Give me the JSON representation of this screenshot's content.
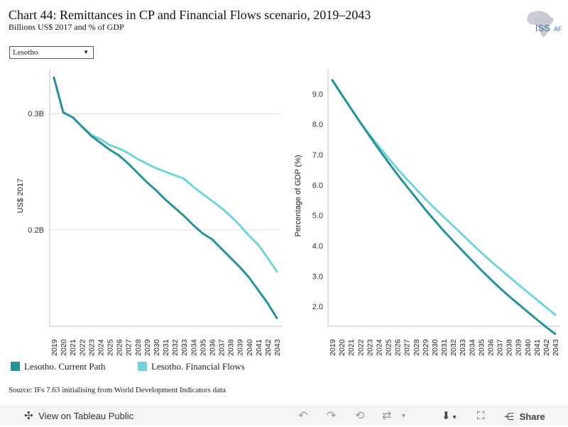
{
  "header": {
    "title": "Chart 44: Remittances in CP and Financial Flows scenario, 2019–2043",
    "subtitle": "Billions US$ 2017 and % of GDP",
    "logo_text": "ISS",
    "logo_suffix": "AF"
  },
  "filter": {
    "selected": "Lesotho",
    "arrow": "▼"
  },
  "colors": {
    "current_path": "#2a9095",
    "financial_flows": "#74d2d6",
    "gridline": "#dcdcdc",
    "axis": "#bdbdbd"
  },
  "chart_data": [
    {
      "type": "line",
      "title": "",
      "xlabel": "",
      "ylabel": "US$ 2017",
      "yticks": [
        "0.2B",
        "0.3B"
      ],
      "ylim": [
        0.117,
        0.338
      ],
      "grid": true,
      "x": [
        "2019",
        "2020",
        "2021",
        "2022",
        "2023",
        "2024",
        "2025",
        "2026",
        "2027",
        "2028",
        "2029",
        "2030",
        "2031",
        "2032",
        "2033",
        "2034",
        "2035",
        "2036",
        "2037",
        "2038",
        "2039",
        "2040",
        "2041",
        "2042",
        "2043"
      ],
      "series": [
        {
          "name": "Lesotho. Current Path",
          "values": [
            0.331,
            0.301,
            0.297,
            0.289,
            0.281,
            0.275,
            0.269,
            0.264,
            0.257,
            0.249,
            0.241,
            0.234,
            0.226,
            0.219,
            0.212,
            0.204,
            0.197,
            0.192,
            0.184,
            0.176,
            0.168,
            0.159,
            0.148,
            0.137,
            0.124
          ]
        },
        {
          "name": "Lesotho. Financial Flows",
          "values": [
            0.331,
            0.301,
            0.297,
            0.289,
            0.282,
            0.278,
            0.273,
            0.27,
            0.266,
            0.261,
            0.257,
            0.253,
            0.25,
            0.247,
            0.244,
            0.237,
            0.231,
            0.225,
            0.219,
            0.212,
            0.204,
            0.195,
            0.187,
            0.176,
            0.164
          ]
        }
      ]
    },
    {
      "type": "line",
      "title": "",
      "xlabel": "",
      "ylabel": "Percentage of GDP (%)",
      "yticks": [
        "2.0",
        "3.0",
        "4.0",
        "5.0",
        "6.0",
        "7.0",
        "8.0",
        "9.0"
      ],
      "ylim": [
        1.35,
        9.8
      ],
      "grid": false,
      "x": [
        "2019",
        "2020",
        "2021",
        "2022",
        "2023",
        "2024",
        "2025",
        "2026",
        "2027",
        "2028",
        "2029",
        "2030",
        "2031",
        "2032",
        "2033",
        "2034",
        "2035",
        "2036",
        "2037",
        "2038",
        "2039",
        "2040",
        "2041",
        "2042",
        "2043"
      ],
      "series": [
        {
          "name": "Lesotho. Current Path",
          "values": [
            9.45,
            8.98,
            8.52,
            8.06,
            7.62,
            7.18,
            6.76,
            6.35,
            5.96,
            5.58,
            5.2,
            4.84,
            4.49,
            4.16,
            3.84,
            3.52,
            3.21,
            2.91,
            2.62,
            2.35,
            2.09,
            1.83,
            1.58,
            1.33,
            1.1
          ]
        },
        {
          "name": "Lesotho. Financial Flows",
          "values": [
            9.45,
            8.98,
            8.52,
            8.06,
            7.66,
            7.28,
            6.9,
            6.54,
            6.2,
            5.87,
            5.55,
            5.24,
            4.95,
            4.66,
            4.37,
            4.07,
            3.79,
            3.51,
            3.25,
            2.99,
            2.73,
            2.48,
            2.23,
            1.98,
            1.73
          ]
        }
      ]
    }
  ],
  "legend": [
    {
      "label": "Lesotho. Current Path"
    },
    {
      "label": "Lesotho. Financial Flows"
    }
  ],
  "source": "Source: IFs 7.63 initialising from World Development Indicators data",
  "toolbar": {
    "view_label": "View on Tableau Public",
    "share_label": "Share"
  }
}
